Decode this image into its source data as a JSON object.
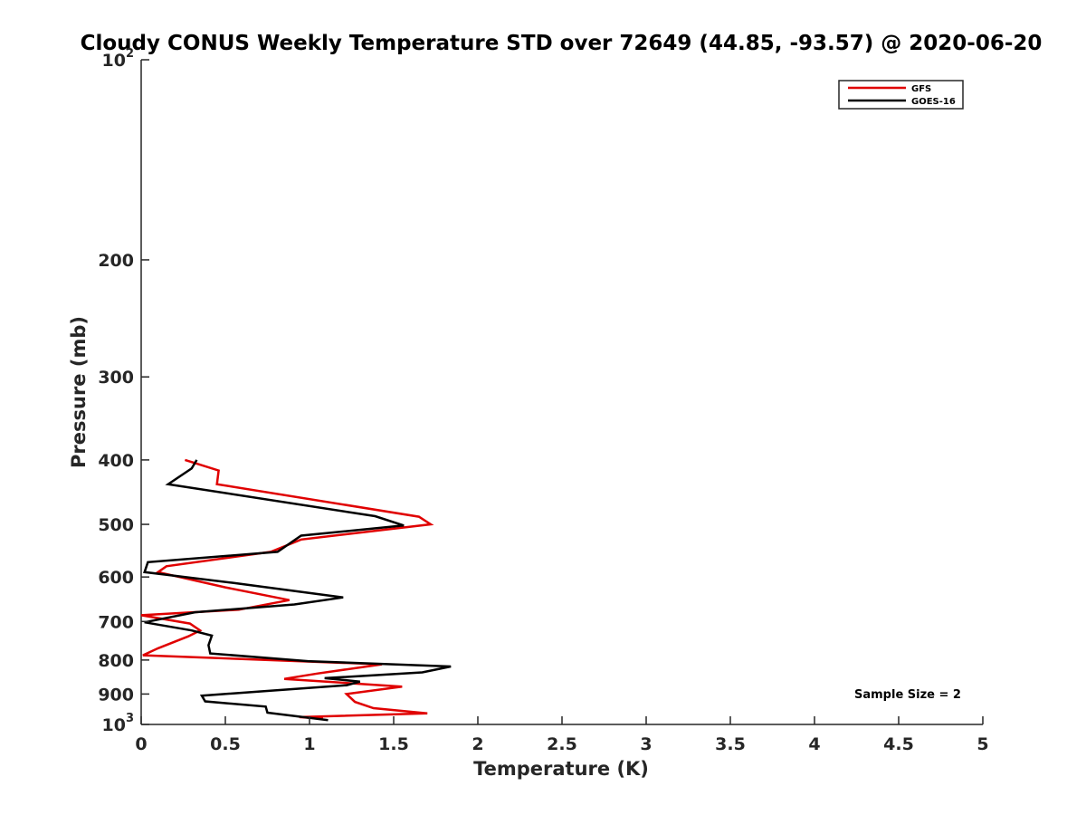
{
  "chart_data": {
    "type": "line",
    "title": "Cloudy CONUS Weekly Temperature STD over 72649 (44.85, -93.57) @ 2020-06-20",
    "xlabel": "Temperature (K)",
    "ylabel": "Pressure (mb)",
    "xlim": [
      0,
      5
    ],
    "ylim": [
      100,
      1000
    ],
    "y_scale": "log",
    "y_reversed": true,
    "x_ticks": [
      0,
      0.5,
      1,
      1.5,
      2,
      2.5,
      3,
      3.5,
      4,
      4.5,
      5
    ],
    "x_tick_labels": [
      "0",
      "0.5",
      "1",
      "1.5",
      "2",
      "2.5",
      "3",
      "3.5",
      "4",
      "4.5",
      "5"
    ],
    "y_ticks": [
      100,
      200,
      300,
      400,
      500,
      600,
      700,
      800,
      900,
      1000
    ],
    "y_tick_labels": [
      {
        "base": "10",
        "exp": "2"
      },
      {
        "base": "200",
        "exp": ""
      },
      {
        "base": "300",
        "exp": ""
      },
      {
        "base": "400",
        "exp": ""
      },
      {
        "base": "500",
        "exp": ""
      },
      {
        "base": "600",
        "exp": ""
      },
      {
        "base": "700",
        "exp": ""
      },
      {
        "base": "800",
        "exp": ""
      },
      {
        "base": "900",
        "exp": ""
      },
      {
        "base": "10",
        "exp": "3"
      }
    ],
    "grid": false,
    "legend_position": "top-right",
    "series": [
      {
        "name": "GFS",
        "color": "#e00000",
        "points": [
          [
            0.26,
            400
          ],
          [
            0.46,
            415
          ],
          [
            0.45,
            435
          ],
          [
            1.65,
            487
          ],
          [
            1.72,
            500
          ],
          [
            0.95,
            527
          ],
          [
            0.77,
            550
          ],
          [
            0.15,
            578
          ],
          [
            0.1,
            590
          ],
          [
            0.5,
            622
          ],
          [
            0.88,
            650
          ],
          [
            0.58,
            672
          ],
          [
            0.0,
            685
          ],
          [
            0.29,
            705
          ],
          [
            0.35,
            722
          ],
          [
            0.28,
            737
          ],
          [
            0.1,
            768
          ],
          [
            0.01,
            787
          ],
          [
            1.43,
            812
          ],
          [
            1.05,
            838
          ],
          [
            0.85,
            854
          ],
          [
            1.55,
            877
          ],
          [
            1.22,
            900
          ],
          [
            1.27,
            925
          ],
          [
            1.38,
            945
          ],
          [
            1.7,
            962
          ],
          [
            0.94,
            975
          ],
          [
            1.08,
            980
          ]
        ]
      },
      {
        "name": "GOES-16",
        "color": "#000000",
        "points": [
          [
            0.33,
            400
          ],
          [
            0.3,
            412
          ],
          [
            0.16,
            435
          ],
          [
            1.39,
            486
          ],
          [
            1.56,
            502
          ],
          [
            0.95,
            520
          ],
          [
            0.81,
            550
          ],
          [
            0.04,
            570
          ],
          [
            0.02,
            590
          ],
          [
            0.54,
            612
          ],
          [
            1.2,
            644
          ],
          [
            0.91,
            660
          ],
          [
            0.32,
            678
          ],
          [
            0.02,
            702
          ],
          [
            0.3,
            722
          ],
          [
            0.42,
            735
          ],
          [
            0.4,
            760
          ],
          [
            0.41,
            782
          ],
          [
            0.99,
            803
          ],
          [
            1.84,
            818
          ],
          [
            1.67,
            835
          ],
          [
            1.09,
            852
          ],
          [
            1.3,
            862
          ],
          [
            1.22,
            873
          ],
          [
            0.36,
            905
          ],
          [
            0.38,
            923
          ],
          [
            0.74,
            940
          ],
          [
            0.75,
            960
          ],
          [
            1.11,
            985
          ]
        ]
      }
    ],
    "annotation": "Sample Size = 2"
  }
}
